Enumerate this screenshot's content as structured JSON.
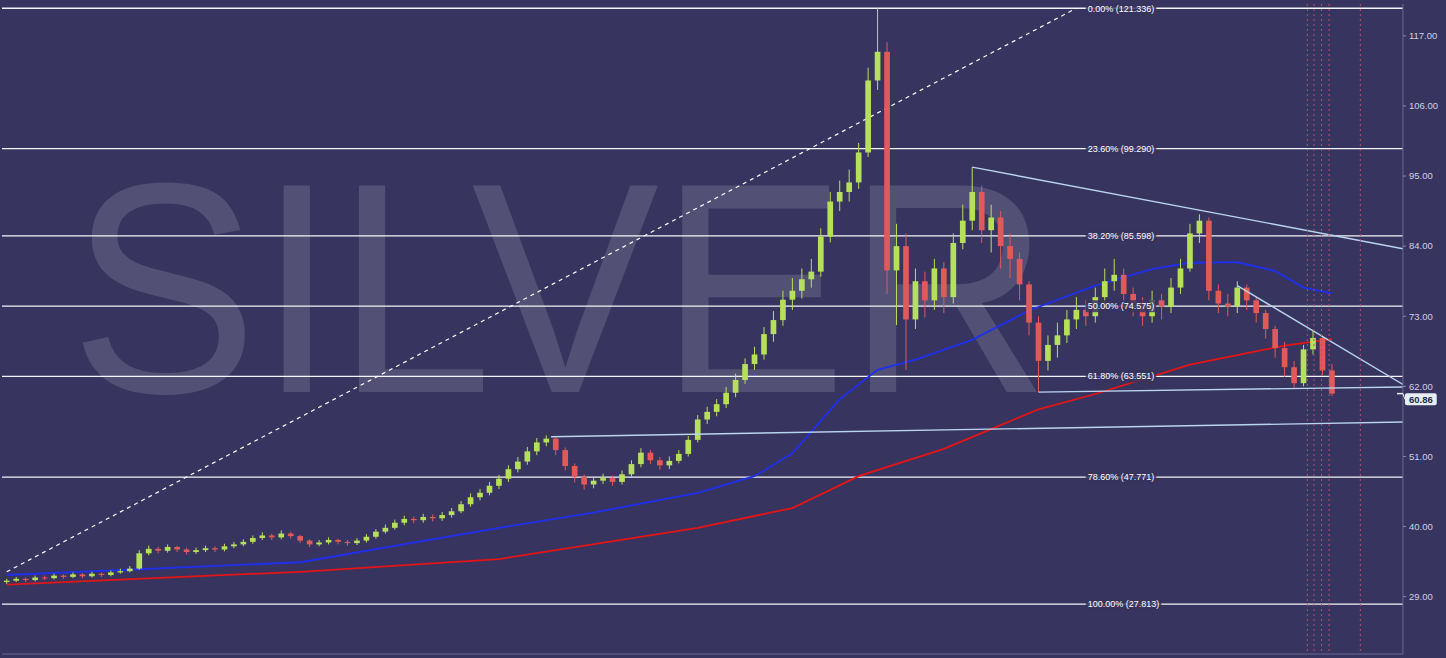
{
  "chart_data": {
    "type": "candlestick",
    "title": "SILVER",
    "categories": [
      null,
      null,
      null,
      null,
      null,
      null,
      null,
      null,
      null,
      null,
      null,
      null,
      null,
      null,
      null,
      null,
      null,
      null,
      null,
      null,
      null,
      null,
      null,
      null,
      null,
      null,
      null,
      null,
      null,
      null,
      null,
      null,
      null,
      null,
      null,
      null,
      null,
      null,
      null,
      null,
      null,
      null,
      null,
      null,
      null,
      null,
      null,
      null,
      null,
      null,
      null,
      null,
      null,
      null,
      null,
      null,
      null,
      null,
      null,
      null,
      null,
      null,
      null,
      null,
      null,
      null,
      null,
      null,
      null,
      null,
      null,
      null,
      null,
      null,
      null,
      null,
      null,
      null,
      null,
      null,
      null,
      null,
      null,
      null,
      null,
      null,
      null,
      null,
      null,
      null,
      null,
      null,
      null,
      null,
      null,
      null,
      null,
      null,
      null,
      null,
      null,
      null,
      null,
      null,
      null,
      null,
      null,
      null,
      null,
      null,
      null,
      null,
      null,
      null,
      null,
      null,
      null,
      null,
      null,
      null,
      null,
      null,
      null,
      null,
      null,
      null,
      null,
      null,
      null,
      null,
      null,
      null,
      null,
      null,
      null,
      null,
      null,
      null,
      null,
      null,
      null
    ],
    "open": [
      31.3,
      31.5,
      31.8,
      31.6,
      32.0,
      31.9,
      32.3,
      32.1,
      32.5,
      32.2,
      32.6,
      32.4,
      32.8,
      33.0,
      33.4,
      35.8,
      36.5,
      36.2,
      36.8,
      36.4,
      36.0,
      36.3,
      36.6,
      36.4,
      36.9,
      37.2,
      37.6,
      38.2,
      38.6,
      38.3,
      38.9,
      38.5,
      37.8,
      37.2,
      37.5,
      37.9,
      37.6,
      37.4,
      37.8,
      38.4,
      39.2,
      39.8,
      40.6,
      41.2,
      41.0,
      41.5,
      41.3,
      41.8,
      42.4,
      43.5,
      44.6,
      45.3,
      46.4,
      47.5,
      49.0,
      50.2,
      51.8,
      53.2,
      53.8,
      52.0,
      49.5,
      47.8,
      46.6,
      47.2,
      47.6,
      47.0,
      48.2,
      49.8,
      51.6,
      50.4,
      49.6,
      50.3,
      51.4,
      53.6,
      56.8,
      58.0,
      59.2,
      61.0,
      63.0,
      65.5,
      67.0,
      70.2,
      72.4,
      75.6,
      77.0,
      78.8,
      80.0,
      85.5,
      91.0,
      92.5,
      94.0,
      98.7,
      110.0,
      114.5,
      80.2,
      84.0,
      72.5,
      78.5,
      75.5,
      80.5,
      76.0,
      84.5,
      88.0,
      92.5,
      86.5,
      88.5,
      84.0,
      82.0,
      78.0,
      72.0,
      66.0,
      68.5,
      70.0,
      72.5,
      74.0,
      73.0,
      76.0,
      78.5,
      79.5,
      76.5,
      75.0,
      73.0,
      75.5,
      74.5,
      77.5,
      80.5,
      86.0,
      88.0,
      77.0,
      75.0,
      74.5,
      77.5,
      75.5,
      73.5,
      71.0,
      68.0,
      65.0,
      62.5,
      67.8,
      69.6,
      64.5
    ],
    "high": [
      31.8,
      32.1,
      32.0,
      32.3,
      32.3,
      32.6,
      32.5,
      32.8,
      32.7,
      32.9,
      32.8,
      33.1,
      33.4,
      33.8,
      36.3,
      37.0,
      36.8,
      37.2,
      37.0,
      36.7,
      36.7,
      37.0,
      36.9,
      37.3,
      37.6,
      38.0,
      38.6,
      39.1,
      38.9,
      39.4,
      39.2,
      38.7,
      38.0,
      37.9,
      38.3,
      38.1,
      37.9,
      38.2,
      38.8,
      39.6,
      40.3,
      41.1,
      41.7,
      41.6,
      42.0,
      41.9,
      42.3,
      42.9,
      44.0,
      45.2,
      45.9,
      47.0,
      48.1,
      49.6,
      50.9,
      52.5,
      53.9,
      54.3,
      54.0,
      52.4,
      49.9,
      48.2,
      47.8,
      48.3,
      48.0,
      48.8,
      50.4,
      52.3,
      52.0,
      50.9,
      51.0,
      52.0,
      54.2,
      57.5,
      58.8,
      60.0,
      61.9,
      64.0,
      66.4,
      68.2,
      71.3,
      73.8,
      77.0,
      79.0,
      80.5,
      82.0,
      86.8,
      92.5,
      94.3,
      96.0,
      100.2,
      112.0,
      121.336,
      116.0,
      87.5,
      86.0,
      80.5,
      80.0,
      82.0,
      81.5,
      86.0,
      90.5,
      96.4,
      93.5,
      90.5,
      89.5,
      86.0,
      83.0,
      78.5,
      73.0,
      70.0,
      72.0,
      74.0,
      76.0,
      75.5,
      77.5,
      80.5,
      82.0,
      80.5,
      77.5,
      76.0,
      77.0,
      76.5,
      79.0,
      82.0,
      87.5,
      89.0,
      88.5,
      78.0,
      76.5,
      78.5,
      78.0,
      76.0,
      74.0,
      71.5,
      69.0,
      66.0,
      68.5,
      70.8,
      70.0,
      65.5
    ],
    "low": [
      31.0,
      31.3,
      31.3,
      31.4,
      31.6,
      31.7,
      31.8,
      31.9,
      31.9,
      32.0,
      32.1,
      32.2,
      32.6,
      32.8,
      33.2,
      35.5,
      35.8,
      35.9,
      36.0,
      35.6,
      35.7,
      36.0,
      36.0,
      36.1,
      36.6,
      36.9,
      37.3,
      37.9,
      37.9,
      38.0,
      38.1,
      37.4,
      36.8,
      36.9,
      37.2,
      37.2,
      37.0,
      37.1,
      37.5,
      38.1,
      38.9,
      39.5,
      40.2,
      40.5,
      40.6,
      40.8,
      40.9,
      41.4,
      42.1,
      43.1,
      44.1,
      44.9,
      45.9,
      47.0,
      48.5,
      49.7,
      51.2,
      52.6,
      51.2,
      48.8,
      46.9,
      45.8,
      46.0,
      46.7,
      46.4,
      46.6,
      47.8,
      49.3,
      49.8,
      48.9,
      49.0,
      49.9,
      51.0,
      53.2,
      56.1,
      57.3,
      58.6,
      60.3,
      62.4,
      64.6,
      66.2,
      69.0,
      71.5,
      74.0,
      75.8,
      77.5,
      79.2,
      84.6,
      89.5,
      91.0,
      93.0,
      98.0,
      108.5,
      76.5,
      71.6,
      64.6,
      71.0,
      72.8,
      74.0,
      73.5,
      75.0,
      83.5,
      86.5,
      84.5,
      83.0,
      80.5,
      79.0,
      75.5,
      70.0,
      61.1,
      64.5,
      66.5,
      68.8,
      71.0,
      71.5,
      72.0,
      75.0,
      77.0,
      75.0,
      73.0,
      71.5,
      72.0,
      72.5,
      73.5,
      76.5,
      80.0,
      84.5,
      75.5,
      73.5,
      73.0,
      73.5,
      74.0,
      72.0,
      69.5,
      66.5,
      63.5,
      61.8,
      62.0,
      67.0,
      63.8,
      60.5
    ],
    "close": [
      31.5,
      31.8,
      31.6,
      32.0,
      31.9,
      32.3,
      32.1,
      32.5,
      32.2,
      32.6,
      32.4,
      32.8,
      33.0,
      33.4,
      35.8,
      36.5,
      36.2,
      36.8,
      36.4,
      36.0,
      36.3,
      36.6,
      36.4,
      36.9,
      37.2,
      37.6,
      38.2,
      38.6,
      38.3,
      38.9,
      38.5,
      37.8,
      37.2,
      37.5,
      37.9,
      37.6,
      37.4,
      37.8,
      38.4,
      39.2,
      39.8,
      40.6,
      41.2,
      41.0,
      41.5,
      41.3,
      41.8,
      42.4,
      43.5,
      44.6,
      45.3,
      46.4,
      47.5,
      49.0,
      50.2,
      51.8,
      53.2,
      53.8,
      52.0,
      49.5,
      47.8,
      46.6,
      47.2,
      47.6,
      47.0,
      48.2,
      49.8,
      51.6,
      50.4,
      49.6,
      50.3,
      51.4,
      53.6,
      56.8,
      58.0,
      59.2,
      61.0,
      63.0,
      65.5,
      67.0,
      70.2,
      72.4,
      75.6,
      77.0,
      78.8,
      80.0,
      85.5,
      91.0,
      92.5,
      94.0,
      98.7,
      110.0,
      114.5,
      80.2,
      84.0,
      72.5,
      78.5,
      75.5,
      80.5,
      76.0,
      84.5,
      88.0,
      92.5,
      86.5,
      88.5,
      84.0,
      82.0,
      78.0,
      72.0,
      66.0,
      68.5,
      70.0,
      72.5,
      74.0,
      73.0,
      76.0,
      78.5,
      79.5,
      76.5,
      75.0,
      73.0,
      75.5,
      74.5,
      77.5,
      80.5,
      86.0,
      88.0,
      77.0,
      75.0,
      74.5,
      77.5,
      75.5,
      73.5,
      71.0,
      68.0,
      65.0,
      62.5,
      67.8,
      69.6,
      64.5,
      60.86
    ],
    "xlim": [
      -0.5,
      147.5
    ],
    "ylim": [
      20,
      122
    ],
    "yticks": [
      {
        "value": 29,
        "label": "29.00"
      },
      {
        "value": 40,
        "label": "40.00"
      },
      {
        "value": 51,
        "label": "51.00"
      },
      {
        "value": 62,
        "label": "62.00"
      },
      {
        "value": 73,
        "label": "73.00"
      },
      {
        "value": 84,
        "label": "84.00"
      },
      {
        "value": 95,
        "label": "95.00"
      },
      {
        "value": 106,
        "label": "106.00"
      },
      {
        "value": 117,
        "label": "117.00"
      }
    ],
    "tick_labels": "y",
    "grid": false,
    "series": [
      {
        "type": "line",
        "color": "#1f2ff0",
        "x": [
          0,
          31,
          52,
          62,
          73,
          79,
          83,
          88,
          92,
          96,
          102,
          108,
          115,
          121,
          125,
          130,
          134,
          137,
          140
        ],
        "values": [
          32.4,
          34.4,
          39.8,
          42.2,
          45.3,
          47.9,
          51.5,
          60.0,
          64.6,
          66.2,
          69.3,
          73.9,
          77.8,
          80.4,
          81.4,
          81.5,
          80.1,
          77.5,
          76.6
        ]
      },
      {
        "type": "line",
        "color": "#e51515",
        "x": [
          0,
          31,
          52,
          73,
          83,
          90,
          99,
          104,
          109,
          115,
          120,
          125,
          130,
          135,
          140
        ],
        "values": [
          30.9,
          32.9,
          34.9,
          39.8,
          42.9,
          47.9,
          52.2,
          55.3,
          58.4,
          60.8,
          63.1,
          65.4,
          66.9,
          68.4,
          69.4
        ]
      }
    ],
    "fibonacci": [
      {
        "value": 121.336,
        "label": "0.00% (121.336)"
      },
      {
        "value": 99.29,
        "label": "23.60% (99.290)"
      },
      {
        "value": 85.598,
        "label": "38.20% (85.598)"
      },
      {
        "value": 74.575,
        "label": "50.00% (74.575)"
      },
      {
        "value": 63.551,
        "label": "61.80% (63.551)"
      },
      {
        "value": 47.771,
        "label": "78.60% (47.771)"
      },
      {
        "value": 27.813,
        "label": "100.00% (27.813)"
      }
    ],
    "fib_diagonal": {
      "x": [
        0,
        113
      ],
      "values": [
        32.9,
        121.336
      ]
    },
    "trend_lines": [
      {
        "x": [
          102,
          147.5
        ],
        "values": [
          96.4,
          83.6
        ]
      },
      {
        "x": [
          130,
          147.5
        ],
        "values": [
          77.8,
          62.3
        ]
      },
      {
        "x": [
          109,
          147.5
        ],
        "values": [
          61.1,
          61.9
        ]
      },
      {
        "x": [
          57.5,
          147.5
        ],
        "values": [
          54.1,
          56.4
        ]
      }
    ],
    "event_lines": [
      137.4,
      138.1,
      138.9,
      139.7,
      143.0
    ],
    "last_price": {
      "value": 60.86,
      "label": "60.86"
    }
  }
}
